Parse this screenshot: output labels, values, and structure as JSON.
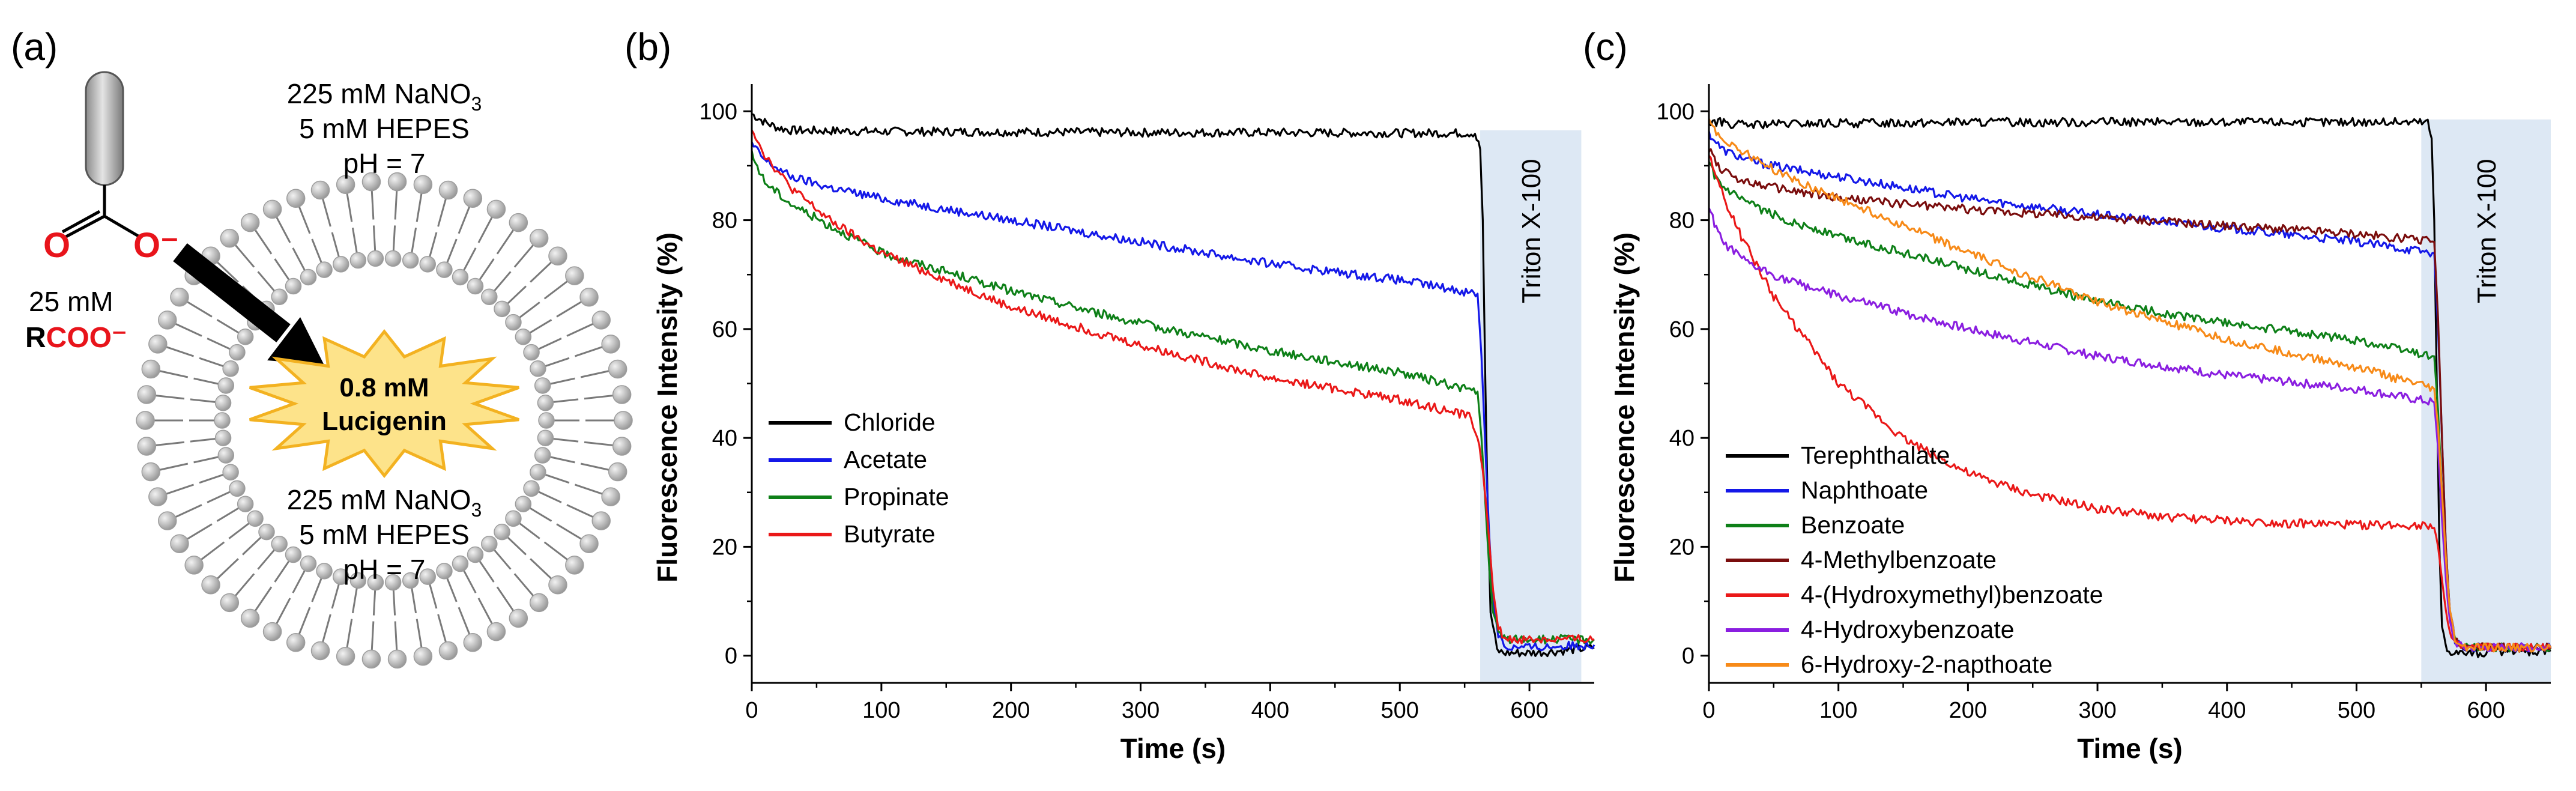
{
  "panel_a": {
    "label": "(a)",
    "outer_conditions": [
      "225 mM NaNO",
      "5 mM HEPES",
      "pH = 7"
    ],
    "inner_conditions": [
      "225 mM NaNO",
      "5 mM HEPES",
      "pH = 7"
    ],
    "nitrate_subscript": "3",
    "carboxylate_conc": "25 mM",
    "carboxylate_r": "R",
    "carboxylate_group": "COO⁻",
    "oxygen_left": "O",
    "oxygen_right": "O⁻",
    "dye_conc": "0.8 mM",
    "dye_name": "Lucigenin",
    "colors": {
      "red": "#e8141b",
      "burst": "#fde38a",
      "burst_edge": "#f3b221",
      "lipid": "#9d9d9d"
    }
  },
  "chart_data": [
    {
      "id": "b",
      "panel_label": "(b)",
      "type": "line",
      "xlabel": "Time (s)",
      "ylabel": "Fluorescence Intensity (%)",
      "xlim": [
        0,
        650
      ],
      "ylim": [
        -5,
        105
      ],
      "xticks": [
        0,
        100,
        200,
        300,
        400,
        500,
        600
      ],
      "yticks": [
        0,
        20,
        40,
        60,
        80,
        100
      ],
      "annotation": {
        "text": "Triton X-100",
        "x_start": 562,
        "x_end": 640,
        "y_top": 96.5,
        "color": "#dde8f4"
      },
      "legend_position": "bottom-left",
      "series": [
        {
          "name": "Chloride",
          "color": "#000000",
          "x": [
            0,
            10,
            20,
            30,
            100,
            200,
            300,
            400,
            500,
            558,
            562,
            564,
            566,
            568,
            570,
            575,
            580,
            600,
            620,
            650
          ],
          "y": [
            99.5,
            98,
            97,
            96.5,
            96.3,
            96.2,
            96.1,
            96.1,
            96,
            96,
            93,
            80,
            50,
            25,
            8,
            1,
            0.5,
            0.5,
            0.8,
            1.5
          ]
        },
        {
          "name": "Acetate",
          "color": "#1418e8",
          "x": [
            0,
            10,
            30,
            60,
            100,
            200,
            300,
            400,
            500,
            560,
            563,
            566,
            569,
            572,
            576,
            582,
            600,
            650
          ],
          "y": [
            94,
            91,
            88,
            86,
            84,
            80,
            76,
            72,
            69,
            66.5,
            55,
            38,
            22,
            10,
            4,
            1.5,
            1.5,
            2
          ]
        },
        {
          "name": "Propinate",
          "color": "#0e8018",
          "x": [
            0,
            10,
            30,
            60,
            100,
            200,
            300,
            400,
            500,
            560,
            563,
            566,
            569,
            572,
            576,
            582,
            600,
            650
          ],
          "y": [
            92,
            87,
            83,
            79,
            74,
            67,
            61,
            56,
            52,
            48.5,
            40,
            28,
            16,
            8,
            4,
            3,
            3,
            3
          ]
        },
        {
          "name": "Butyrate",
          "color": "#ea1818",
          "x": [
            0,
            10,
            30,
            60,
            100,
            200,
            300,
            400,
            500,
            555,
            560,
            564,
            568,
            572,
            576,
            582,
            600,
            650
          ],
          "y": [
            97,
            92,
            86,
            80,
            74,
            64,
            57,
            51,
            47,
            44,
            40,
            34,
            24,
            12,
            5,
            3,
            3,
            3
          ]
        }
      ]
    },
    {
      "id": "c",
      "panel_label": "(c)",
      "type": "line",
      "xlabel": "Time (s)",
      "ylabel": "Fluorescence Intensity (%)",
      "xlim": [
        0,
        650
      ],
      "ylim": [
        -5,
        105
      ],
      "xticks": [
        0,
        100,
        200,
        300,
        400,
        500,
        600
      ],
      "yticks": [
        0,
        20,
        40,
        60,
        80,
        100
      ],
      "annotation": {
        "text": "Triton X-100",
        "x_start": 550,
        "x_end": 650,
        "y_top": 98.5,
        "color": "#dde8f4"
      },
      "legend_position": "bottom-left",
      "series": [
        {
          "name": "Terephthalate",
          "color": "#000000",
          "x": [
            0,
            10,
            20,
            30,
            100,
            200,
            300,
            400,
            500,
            555,
            558,
            560,
            562,
            564,
            566,
            570,
            580,
            600,
            650
          ],
          "y": [
            98,
            98,
            97.5,
            97.5,
            97.8,
            98,
            98,
            98,
            98,
            98,
            95,
            80,
            50,
            20,
            5,
            1,
            0.5,
            0.5,
            1
          ]
        },
        {
          "name": "Naphthoate",
          "color": "#1418e8",
          "x": [
            0,
            10,
            30,
            60,
            100,
            200,
            300,
            400,
            500,
            560,
            563,
            566,
            569,
            572,
            576,
            582,
            600,
            650
          ],
          "y": [
            96,
            93,
            91,
            89.5,
            88,
            84,
            81,
            78.5,
            76,
            74,
            60,
            40,
            20,
            8,
            3,
            1.5,
            1.5,
            1.5
          ]
        },
        {
          "name": "Benzoate",
          "color": "#0e8018",
          "x": [
            0,
            10,
            30,
            60,
            100,
            200,
            300,
            400,
            500,
            560,
            563,
            566,
            569,
            572,
            576,
            582,
            600,
            650
          ],
          "y": [
            90,
            86,
            83,
            80,
            77,
            71,
            65,
            61,
            58,
            55,
            45,
            30,
            17,
            8,
            3,
            1.5,
            1.5,
            1.5
          ]
        },
        {
          "name": "4-Methylbenzoate",
          "color": "#7a0d0d",
          "x": [
            0,
            10,
            30,
            60,
            100,
            200,
            300,
            400,
            500,
            560,
            563,
            566,
            569,
            572,
            576,
            582,
            600,
            650
          ],
          "y": [
            93,
            89,
            87,
            85.5,
            84,
            82,
            80.5,
            79,
            77.5,
            76,
            62,
            40,
            20,
            8,
            3,
            1.5,
            1.5,
            1.5
          ]
        },
        {
          "name": "4-(Hydroxymethyl)benzoate",
          "color": "#ea1818",
          "x": [
            0,
            10,
            25,
            50,
            100,
            150,
            200,
            250,
            300,
            350,
            400,
            450,
            500,
            560,
            563,
            566,
            569,
            572,
            576,
            582,
            600,
            650
          ],
          "y": [
            92,
            85,
            77,
            66,
            50,
            40,
            33.5,
            29.5,
            27,
            25.5,
            24.8,
            24.3,
            24,
            24,
            20,
            14,
            8,
            4,
            2,
            1.5,
            1.5,
            1.5
          ]
        },
        {
          "name": "4-Hydroxybenzoate",
          "color": "#8a1ee0",
          "x": [
            0,
            10,
            30,
            60,
            100,
            200,
            300,
            400,
            500,
            560,
            563,
            566,
            569,
            572,
            576,
            582,
            600,
            650
          ],
          "y": [
            82,
            76,
            72,
            69,
            66,
            60,
            55,
            51.5,
            49,
            46.5,
            38,
            25,
            14,
            6,
            2.5,
            1.5,
            1.5,
            1.5
          ]
        },
        {
          "name": "6-Hydroxy-2-napthoate",
          "color": "#f78a18",
          "x": [
            0,
            10,
            30,
            60,
            100,
            200,
            300,
            400,
            500,
            560,
            563,
            566,
            569,
            572,
            576,
            582,
            600,
            650
          ],
          "y": [
            98,
            95,
            92,
            88,
            84,
            74,
            65,
            58,
            53,
            49,
            42,
            30,
            18,
            8,
            3,
            1.5,
            1.5,
            1.5
          ]
        }
      ]
    }
  ]
}
